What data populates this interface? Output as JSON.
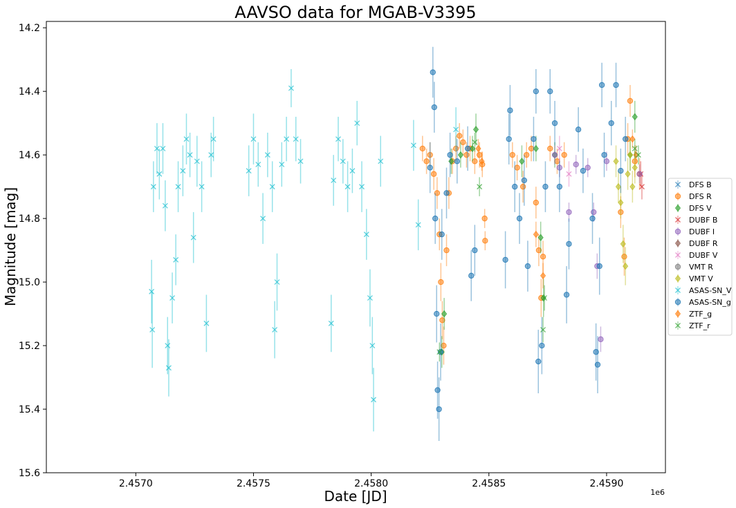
{
  "chart_data": {
    "type": "scatter",
    "title": "AAVSO data for MGAB-V3395",
    "xlabel": "Date [JD]",
    "ylabel": "Magnitude [mag]",
    "x_offset_label": "1e6",
    "xlim": [
      2.45662,
      2.45925
    ],
    "ylim": [
      15.6,
      14.18
    ],
    "y_inverted": true,
    "grid": false,
    "legend_position": "center right outside",
    "x_ticks": [
      2.457,
      2.4575,
      2.458,
      2.4585,
      2.459
    ],
    "x_tick_labels": [
      "2.4570",
      "2.4575",
      "2.4580",
      "2.4585",
      "2.4590"
    ],
    "y_ticks": [
      14.2,
      14.4,
      14.6,
      14.8,
      15.0,
      15.2,
      15.4,
      15.6
    ],
    "y_tick_labels": [
      "14.2",
      "14.4",
      "14.6",
      "14.8",
      "15.0",
      "15.2",
      "15.4",
      "15.6"
    ],
    "series": [
      {
        "name": "DFS B",
        "marker": "x",
        "color": "#1f77b4",
        "points": []
      },
      {
        "name": "DFS R",
        "marker": "o",
        "color": "#ff7f0e",
        "points": [
          [
            2.458218,
            14.58,
            0.04
          ],
          [
            2.458235,
            14.62,
            0.04
          ],
          [
            2.45825,
            14.6,
            0.04
          ],
          [
            2.458266,
            14.66,
            0.05
          ],
          [
            2.45828,
            14.72,
            0.05
          ],
          [
            2.45829,
            14.85,
            0.05
          ],
          [
            2.458296,
            15.0,
            0.06
          ],
          [
            2.458302,
            15.12,
            0.06
          ],
          [
            2.458308,
            15.2,
            0.06
          ],
          [
            2.45832,
            14.9,
            0.05
          ],
          [
            2.45833,
            14.72,
            0.05
          ],
          [
            2.458345,
            14.62,
            0.04
          ],
          [
            2.45836,
            14.58,
            0.04
          ],
          [
            2.458375,
            14.54,
            0.04
          ],
          [
            2.45839,
            14.56,
            0.04
          ],
          [
            2.458405,
            14.6,
            0.04
          ],
          [
            2.45842,
            14.58,
            0.04
          ],
          [
            2.45844,
            14.62,
            0.04
          ],
          [
            2.45846,
            14.6,
            0.04
          ],
          [
            2.458472,
            14.63,
            0.04
          ],
          [
            2.458482,
            14.8,
            0.03
          ],
          [
            2.458484,
            14.87,
            0.03
          ],
          [
            2.4586,
            14.6,
            0.04
          ],
          [
            2.45862,
            14.64,
            0.04
          ],
          [
            2.458645,
            14.7,
            0.05
          ],
          [
            2.45866,
            14.6,
            0.04
          ],
          [
            2.45868,
            14.58,
            0.04
          ],
          [
            2.4587,
            14.75,
            0.05
          ],
          [
            2.458712,
            14.9,
            0.05
          ],
          [
            2.458722,
            15.05,
            0.06
          ],
          [
            2.45873,
            14.92,
            0.05
          ],
          [
            2.45876,
            14.58,
            0.04
          ],
          [
            2.45879,
            14.62,
            0.04
          ],
          [
            2.45882,
            14.6,
            0.04
          ],
          [
            2.45906,
            14.78,
            0.05
          ],
          [
            2.459075,
            14.92,
            0.06
          ],
          [
            2.45909,
            14.55,
            0.05
          ],
          [
            2.4591,
            14.43,
            0.05
          ],
          [
            2.45912,
            14.62,
            0.05
          ],
          [
            2.45914,
            14.66,
            0.05
          ]
        ]
      },
      {
        "name": "DFS V",
        "marker": "D",
        "color": "#2ca02c",
        "points": [
          [
            2.4583,
            15.22,
            0.05
          ],
          [
            2.45831,
            15.1,
            0.05
          ],
          [
            2.45834,
            14.62,
            0.04
          ],
          [
            2.45838,
            14.6,
            0.04
          ],
          [
            2.45843,
            14.58,
            0.04
          ],
          [
            2.458445,
            14.52,
            0.05
          ],
          [
            2.45864,
            14.62,
            0.05
          ],
          [
            2.4587,
            14.58,
            0.04
          ],
          [
            2.45872,
            14.86,
            0.05
          ],
          [
            2.458732,
            15.05,
            0.06
          ],
          [
            2.45878,
            14.6,
            0.04
          ],
          [
            2.4591,
            14.6,
            0.05
          ],
          [
            2.45912,
            14.48,
            0.05
          ]
        ]
      },
      {
        "name": "DUBF B",
        "marker": "x",
        "color": "#d62728",
        "points": [
          [
            2.459145,
            14.66,
            0.04
          ],
          [
            2.45915,
            14.7,
            0.04
          ]
        ]
      },
      {
        "name": "DUBF I",
        "marker": "o",
        "color": "#9467bd",
        "points": [
          [
            2.45878,
            14.6,
            0.03
          ],
          [
            2.4588,
            14.64,
            0.03
          ],
          [
            2.45884,
            14.78,
            0.03
          ],
          [
            2.45887,
            14.63,
            0.03
          ],
          [
            2.45892,
            14.64,
            0.03
          ],
          [
            2.458945,
            14.78,
            0.03
          ],
          [
            2.45896,
            14.95,
            0.04
          ],
          [
            2.458975,
            15.18,
            0.04
          ],
          [
            2.459,
            14.62,
            0.03
          ],
          [
            2.45914,
            14.66,
            0.03
          ]
        ]
      },
      {
        "name": "DUBF R",
        "marker": "D",
        "color": "#8c564b",
        "points": []
      },
      {
        "name": "DUBF V",
        "marker": "x",
        "color": "#e377c2",
        "points": [
          [
            2.4588,
            14.58,
            0.04
          ],
          [
            2.45884,
            14.66,
            0.04
          ]
        ]
      },
      {
        "name": "VMT R",
        "marker": "o",
        "color": "#7f7f7f",
        "points": []
      },
      {
        "name": "VMT V",
        "marker": "D",
        "color": "#bcbd22",
        "points": [
          [
            2.45904,
            14.62,
            0.05
          ],
          [
            2.45905,
            14.7,
            0.05
          ],
          [
            2.45906,
            14.75,
            0.05
          ],
          [
            2.45907,
            14.88,
            0.06
          ],
          [
            2.45908,
            14.95,
            0.06
          ],
          [
            2.45909,
            14.66,
            0.05
          ],
          [
            2.4591,
            14.6,
            0.05
          ],
          [
            2.45911,
            14.7,
            0.05
          ],
          [
            2.45912,
            14.64,
            0.05
          ]
        ]
      },
      {
        "name": "ASAS-SN_V",
        "marker": "x",
        "color": "#17becf",
        "points": [
          [
            2.457067,
            15.03,
            0.1
          ],
          [
            2.45707,
            15.15,
            0.12
          ],
          [
            2.457075,
            14.7,
            0.08
          ],
          [
            2.45709,
            14.58,
            0.08
          ],
          [
            2.4571,
            14.66,
            0.08
          ],
          [
            2.457115,
            14.58,
            0.08
          ],
          [
            2.457125,
            14.76,
            0.08
          ],
          [
            2.457135,
            15.2,
            0.09
          ],
          [
            2.45714,
            15.27,
            0.09
          ],
          [
            2.457155,
            15.05,
            0.08
          ],
          [
            2.45717,
            14.93,
            0.08
          ],
          [
            2.45718,
            14.7,
            0.08
          ],
          [
            2.4572,
            14.65,
            0.08
          ],
          [
            2.457215,
            14.55,
            0.08
          ],
          [
            2.45723,
            14.6,
            0.07
          ],
          [
            2.457245,
            14.86,
            0.08
          ],
          [
            2.45726,
            14.62,
            0.08
          ],
          [
            2.45728,
            14.7,
            0.08
          ],
          [
            2.4573,
            15.13,
            0.09
          ],
          [
            2.45732,
            14.6,
            0.07
          ],
          [
            2.45733,
            14.55,
            0.07
          ],
          [
            2.45748,
            14.65,
            0.08
          ],
          [
            2.4575,
            14.55,
            0.08
          ],
          [
            2.45752,
            14.63,
            0.07
          ],
          [
            2.45754,
            14.8,
            0.08
          ],
          [
            2.45756,
            14.6,
            0.07
          ],
          [
            2.45758,
            14.7,
            0.08
          ],
          [
            2.45759,
            15.15,
            0.09
          ],
          [
            2.4576,
            15.0,
            0.09
          ],
          [
            2.45762,
            14.63,
            0.07
          ],
          [
            2.45764,
            14.55,
            0.07
          ],
          [
            2.45766,
            14.39,
            0.06
          ],
          [
            2.45768,
            14.55,
            0.07
          ],
          [
            2.4577,
            14.62,
            0.07
          ],
          [
            2.45783,
            15.13,
            0.09
          ],
          [
            2.45784,
            14.68,
            0.08
          ],
          [
            2.45786,
            14.55,
            0.07
          ],
          [
            2.45788,
            14.62,
            0.07
          ],
          [
            2.4579,
            14.7,
            0.08
          ],
          [
            2.45792,
            14.65,
            0.07
          ],
          [
            2.45794,
            14.5,
            0.07
          ],
          [
            2.45796,
            14.7,
            0.08
          ],
          [
            2.45798,
            14.85,
            0.08
          ],
          [
            2.457995,
            15.05,
            0.09
          ],
          [
            2.458005,
            15.2,
            0.09
          ],
          [
            2.45801,
            15.37,
            0.1
          ],
          [
            2.45804,
            14.62,
            0.08
          ],
          [
            2.45818,
            14.57,
            0.08
          ],
          [
            2.4582,
            14.82,
            0.08
          ],
          [
            2.45836,
            14.52,
            0.07
          ]
        ]
      },
      {
        "name": "ASAS-SN_g",
        "marker": "o",
        "color": "#1f77b4",
        "points": [
          [
            2.45825,
            14.64,
            0.08
          ],
          [
            2.458262,
            14.34,
            0.08
          ],
          [
            2.458268,
            14.45,
            0.08
          ],
          [
            2.458272,
            14.8,
            0.08
          ],
          [
            2.458278,
            15.1,
            0.09
          ],
          [
            2.458282,
            15.34,
            0.09
          ],
          [
            2.458288,
            15.4,
            0.1
          ],
          [
            2.458295,
            15.22,
            0.09
          ],
          [
            2.4583,
            14.85,
            0.08
          ],
          [
            2.45832,
            14.72,
            0.08
          ],
          [
            2.458335,
            14.6,
            0.07
          ],
          [
            2.458365,
            14.62,
            0.07
          ],
          [
            2.45841,
            14.58,
            0.07
          ],
          [
            2.458425,
            14.98,
            0.08
          ],
          [
            2.45844,
            14.9,
            0.08
          ],
          [
            2.45857,
            14.93,
            0.09
          ],
          [
            2.458585,
            14.55,
            0.08
          ],
          [
            2.45859,
            14.46,
            0.08
          ],
          [
            2.45861,
            14.7,
            0.08
          ],
          [
            2.45863,
            14.8,
            0.08
          ],
          [
            2.45865,
            14.68,
            0.08
          ],
          [
            2.458665,
            14.95,
            0.08
          ],
          [
            2.45869,
            14.55,
            0.07
          ],
          [
            2.4587,
            14.4,
            0.07
          ],
          [
            2.45871,
            15.25,
            0.1
          ],
          [
            2.458725,
            15.2,
            0.09
          ],
          [
            2.45874,
            14.7,
            0.08
          ],
          [
            2.45876,
            14.4,
            0.07
          ],
          [
            2.45878,
            14.5,
            0.07
          ],
          [
            2.4588,
            14.7,
            0.08
          ],
          [
            2.45883,
            15.04,
            0.09
          ],
          [
            2.45884,
            14.88,
            0.08
          ],
          [
            2.45888,
            14.52,
            0.07
          ],
          [
            2.4589,
            14.65,
            0.07
          ],
          [
            2.45894,
            14.8,
            0.08
          ],
          [
            2.458955,
            15.22,
            0.09
          ],
          [
            2.458962,
            15.26,
            0.09
          ],
          [
            2.45897,
            14.95,
            0.09
          ],
          [
            2.45898,
            14.38,
            0.07
          ],
          [
            2.45899,
            14.6,
            0.07
          ],
          [
            2.45902,
            14.5,
            0.07
          ],
          [
            2.45904,
            14.38,
            0.07
          ],
          [
            2.45906,
            14.65,
            0.07
          ],
          [
            2.45908,
            14.55,
            0.07
          ]
        ]
      },
      {
        "name": "ZTF_g",
        "marker": "D",
        "color": "#ff7f0e",
        "points": [
          [
            2.458455,
            14.58,
            0.03
          ],
          [
            2.45847,
            14.62,
            0.03
          ],
          [
            2.4587,
            14.85,
            0.04
          ],
          [
            2.45873,
            14.98,
            0.04
          ],
          [
            2.45911,
            14.55,
            0.03
          ],
          [
            2.459125,
            14.6,
            0.03
          ]
        ]
      },
      {
        "name": "ZTF_r",
        "marker": "x",
        "color": "#2ca02c",
        "points": [
          [
            2.45829,
            15.22,
            0.03
          ],
          [
            2.45844,
            14.56,
            0.03
          ],
          [
            2.45846,
            14.7,
            0.03
          ],
          [
            2.45873,
            15.15,
            0.04
          ],
          [
            2.458736,
            15.05,
            0.04
          ],
          [
            2.45912,
            14.58,
            0.03
          ],
          [
            2.459135,
            14.6,
            0.03
          ]
        ]
      }
    ]
  }
}
